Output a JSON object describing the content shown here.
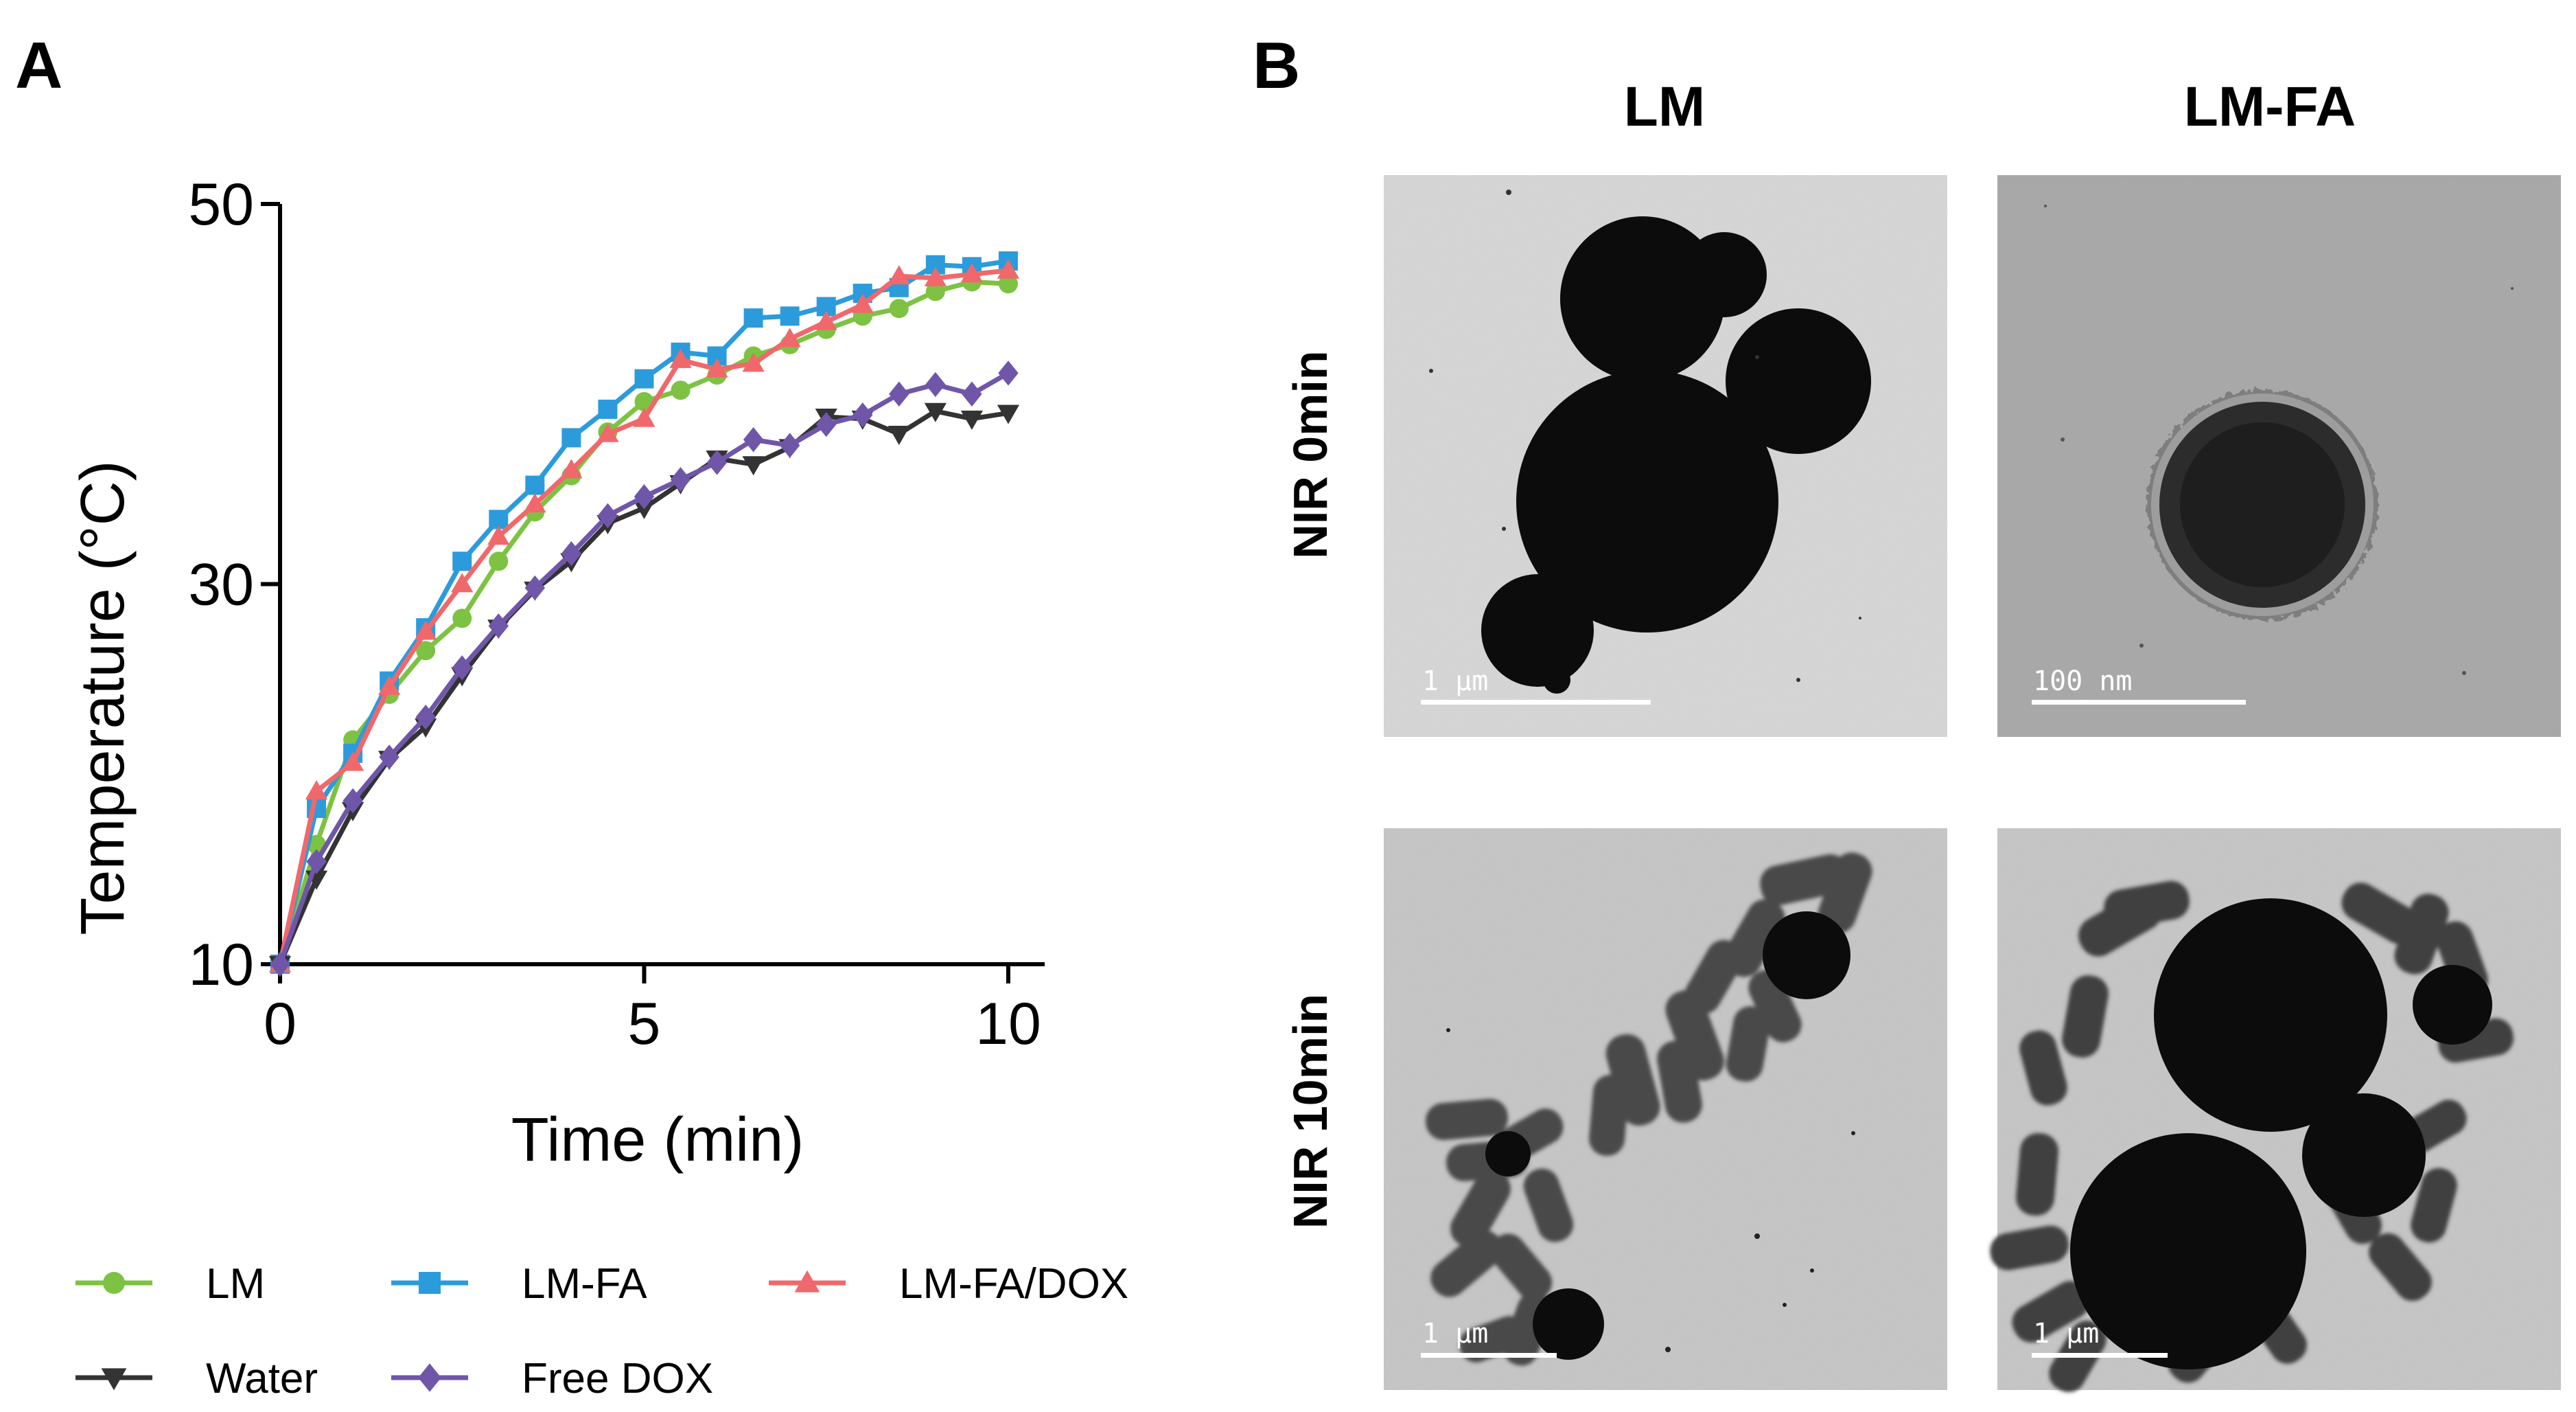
{
  "panels": {
    "a": "A",
    "b": "B"
  },
  "chart_data": {
    "type": "line",
    "title": "",
    "xlabel": "Time (min)",
    "ylabel": "Temperature (°C)",
    "xlim": [
      0,
      10.5
    ],
    "ylim": [
      10,
      50
    ],
    "xticks": [
      0,
      5,
      10
    ],
    "yticks": [
      10,
      30,
      50
    ],
    "grid": false,
    "legend_position": "bottom",
    "x": [
      0,
      0.5,
      1,
      1.5,
      2,
      2.5,
      3,
      3.5,
      4,
      4.5,
      5,
      5.5,
      6,
      6.5,
      7,
      7.5,
      8,
      8.5,
      9,
      9.5,
      10
    ],
    "series": [
      {
        "name": "LM",
        "color": "#7DC242",
        "marker": "circle",
        "values": [
          10,
          16.3,
          21.8,
          24.2,
          26.5,
          28.2,
          31.2,
          33.8,
          35.7,
          38,
          39.6,
          40.2,
          41,
          42,
          42.6,
          43.4,
          44.1,
          44.5,
          45.4,
          45.9,
          45.8
        ]
      },
      {
        "name": "LM-FA",
        "color": "#2C9BDB",
        "marker": "square",
        "values": [
          10,
          18.2,
          21.1,
          24.9,
          27.7,
          31.2,
          33.4,
          35.2,
          37.7,
          39.2,
          40.8,
          42.2,
          42,
          44,
          44.1,
          44.6,
          45.3,
          45.6,
          46.8,
          46.7,
          47
        ]
      },
      {
        "name": "LM-FA/DOX",
        "color": "#F0686B",
        "marker": "triangle",
        "values": [
          10,
          19.1,
          20.6,
          24.6,
          27.5,
          30,
          32.5,
          34.2,
          36,
          37.9,
          38.7,
          41.8,
          41.3,
          41.6,
          42.9,
          43.8,
          44.7,
          46.2,
          46.1,
          46.3,
          46.5
        ]
      },
      {
        "name": "Water",
        "color": "#333333",
        "marker": "triangle-down",
        "values": [
          10,
          14.5,
          18.1,
          20.8,
          22.5,
          25.2,
          27.7,
          29.7,
          31.2,
          33.2,
          34,
          35.3,
          36.6,
          36.3,
          37.2,
          38.8,
          38.7,
          37.9,
          39.1,
          38.7,
          39
        ]
      },
      {
        "name": "Free DOX",
        "color": "#7056A8",
        "marker": "diamond",
        "values": [
          10,
          15.4,
          18.6,
          20.9,
          23,
          25.6,
          27.8,
          29.8,
          31.6,
          33.6,
          34.6,
          35.5,
          36.4,
          37.6,
          37.3,
          38.4,
          38.9,
          40,
          40.5,
          40,
          41.1
        ]
      }
    ]
  },
  "tem_panel": {
    "columns": [
      "LM",
      "LM-FA"
    ],
    "rows": [
      "NIR 0min",
      "NIR 10min"
    ],
    "scale_bars": [
      "1 μm",
      "100 nm",
      "1 μm",
      "1 μm"
    ]
  }
}
